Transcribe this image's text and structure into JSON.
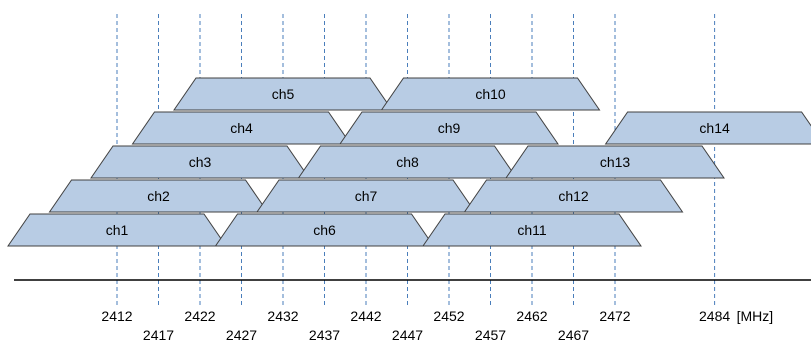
{
  "colors": {
    "channel_fill": "#b8cce4",
    "channel_stroke": "#404040",
    "guide_line": "#4a7ebb",
    "axis": "#000000",
    "text": "#000000"
  },
  "chart_data": {
    "type": "diagram",
    "unit_label": "[MHz]",
    "frequencies": [
      {
        "mhz": 2412,
        "label": "2412",
        "row": "upper"
      },
      {
        "mhz": 2417,
        "label": "2417",
        "row": "lower"
      },
      {
        "mhz": 2422,
        "label": "2422",
        "row": "upper"
      },
      {
        "mhz": 2427,
        "label": "2427",
        "row": "lower"
      },
      {
        "mhz": 2432,
        "label": "2432",
        "row": "upper"
      },
      {
        "mhz": 2437,
        "label": "2437",
        "row": "lower"
      },
      {
        "mhz": 2442,
        "label": "2442",
        "row": "upper"
      },
      {
        "mhz": 2447,
        "label": "2447",
        "row": "lower"
      },
      {
        "mhz": 2452,
        "label": "2452",
        "row": "upper"
      },
      {
        "mhz": 2457,
        "label": "2457",
        "row": "lower"
      },
      {
        "mhz": 2462,
        "label": "2462",
        "row": "upper"
      },
      {
        "mhz": 2467,
        "label": "2467",
        "row": "lower"
      },
      {
        "mhz": 2472,
        "label": "2472",
        "row": "upper"
      },
      {
        "mhz": 2484,
        "label": "2484",
        "row": "upper"
      }
    ],
    "channels": [
      {
        "label": "ch1",
        "center_mhz": 2412
      },
      {
        "label": "ch2",
        "center_mhz": 2417
      },
      {
        "label": "ch3",
        "center_mhz": 2422
      },
      {
        "label": "ch4",
        "center_mhz": 2427
      },
      {
        "label": "ch5",
        "center_mhz": 2432
      },
      {
        "label": "ch6",
        "center_mhz": 2437
      },
      {
        "label": "ch7",
        "center_mhz": 2442
      },
      {
        "label": "ch8",
        "center_mhz": 2447
      },
      {
        "label": "ch9",
        "center_mhz": 2452
      },
      {
        "label": "ch10",
        "center_mhz": 2457
      },
      {
        "label": "ch11",
        "center_mhz": 2462
      },
      {
        "label": "ch12",
        "center_mhz": 2467
      },
      {
        "label": "ch13",
        "center_mhz": 2472
      },
      {
        "label": "ch14",
        "center_mhz": 2484
      }
    ]
  }
}
